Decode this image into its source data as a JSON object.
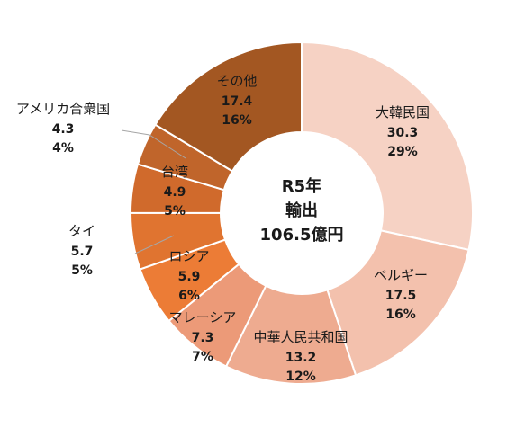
{
  "chart_data": {
    "type": "pie",
    "variant": "donut",
    "center_label": [
      "R5年",
      "輸出",
      "106.5億円"
    ],
    "start_angle_deg": 0,
    "direction": "clockwise",
    "slices": [
      {
        "name": "大韓民国",
        "value": 30.3,
        "percent": "29%",
        "color": "#f6d2c4"
      },
      {
        "name": "ベルギー",
        "value": 17.5,
        "percent": "16%",
        "color": "#f3c1ad"
      },
      {
        "name": "中華人民共和国",
        "value": 13.2,
        "percent": "12%",
        "color": "#eeab90"
      },
      {
        "name": "マレーシア",
        "value": 7.3,
        "percent": "7%",
        "color": "#ec9a78"
      },
      {
        "name": "ロシア",
        "value": 5.9,
        "percent": "6%",
        "color": "#ec7c36"
      },
      {
        "name": "タイ",
        "value": 5.7,
        "percent": "5%",
        "color": "#e07430"
      },
      {
        "name": "台湾",
        "value": 4.9,
        "percent": "5%",
        "color": "#d06a2c"
      },
      {
        "name": "アメリカ合衆国",
        "value": 4.3,
        "percent": "4%",
        "color": "#c0652b"
      },
      {
        "name": "その他",
        "value": 17.4,
        "percent": "16%",
        "color": "#a35722"
      }
    ]
  }
}
